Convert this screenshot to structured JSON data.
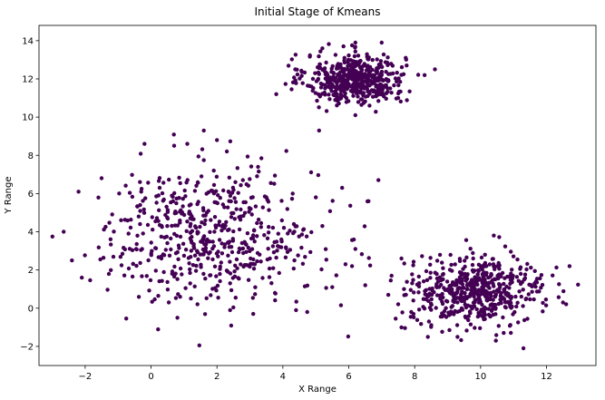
{
  "chart_data": {
    "type": "scatter",
    "title": "Initial Stage of Kmeans",
    "xlabel": "X Range",
    "ylabel": "Y Range",
    "xlim": [
      -3.4,
      13.5
    ],
    "ylim": [
      -3.0,
      14.8
    ],
    "xticks": [
      -2,
      0,
      2,
      4,
      6,
      8,
      10,
      12
    ],
    "yticks": [
      -2,
      0,
      2,
      4,
      6,
      8,
      10,
      12,
      14
    ],
    "grid": false,
    "legend": "none",
    "marker_color": "#440154",
    "series": [
      {
        "clusters": [
          {
            "center": [
              6.2,
              12.0
            ],
            "spread": [
              0.75,
              0.65
            ],
            "count": 500
          },
          {
            "center": [
              1.8,
              3.8
            ],
            "spread": [
              1.65,
              1.75
            ],
            "count": 550
          },
          {
            "center": [
              9.9,
              0.9
            ],
            "spread": [
              1.0,
              0.85
            ],
            "count": 550
          }
        ],
        "values": [
          [
            -2.65,
            4.0
          ],
          [
            -2.2,
            6.1
          ],
          [
            -1.5,
            6.8
          ],
          [
            -2.1,
            1.6
          ],
          [
            -2.4,
            2.5
          ],
          [
            0.7,
            8.5
          ],
          [
            1.1,
            8.6
          ],
          [
            1.6,
            9.3
          ],
          [
            2.0,
            8.8
          ],
          [
            2.3,
            8.2
          ],
          [
            -0.2,
            8.6
          ],
          [
            6.9,
            6.7
          ],
          [
            6.6,
            5.6
          ],
          [
            5.8,
            6.3
          ],
          [
            5.0,
            5.8
          ],
          [
            7.0,
            13.9
          ],
          [
            6.2,
            13.9
          ],
          [
            5.2,
            13.6
          ],
          [
            5.1,
            9.3
          ],
          [
            6.2,
            10.1
          ],
          [
            3.8,
            11.2
          ],
          [
            8.3,
            12.2
          ],
          [
            7.5,
            11.0
          ],
          [
            7.6,
            2.6
          ],
          [
            7.6,
            -1.0
          ],
          [
            8.4,
            -1.5
          ],
          [
            9.3,
            -1.5
          ],
          [
            11.3,
            -2.1
          ],
          [
            12.7,
            2.2
          ],
          [
            12.5,
            0.3
          ],
          [
            10.4,
            3.8
          ],
          [
            7.3,
            1.7
          ],
          [
            7.2,
            0.7
          ],
          [
            5.5,
            1.1
          ],
          [
            6.5,
            1.2
          ],
          [
            0.8,
            -0.5
          ],
          [
            3.1,
            -0.3
          ],
          [
            2.4,
            -0.1
          ],
          [
            4.4,
            -0.1
          ],
          [
            6.1,
            2.2
          ],
          [
            6.2,
            3.1
          ],
          [
            5.2,
            4.3
          ],
          [
            5.9,
            2.3
          ]
        ]
      }
    ]
  }
}
